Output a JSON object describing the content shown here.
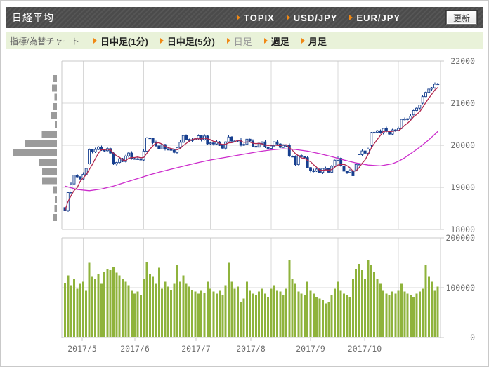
{
  "header": {
    "title": "日経平均",
    "links": [
      {
        "label": "TOPIX"
      },
      {
        "label": "USD/JPY"
      },
      {
        "label": "EUR/JPY"
      }
    ],
    "update_button": "更新"
  },
  "toolbar": {
    "label": "指標/為替チャート",
    "tabs": [
      {
        "label": "日中足(1分)",
        "state": "link"
      },
      {
        "label": "日中足(5分)",
        "state": "link"
      },
      {
        "label": "日足",
        "state": "current"
      },
      {
        "label": "週足",
        "state": "link"
      },
      {
        "label": "月足",
        "state": "link"
      }
    ]
  },
  "colors": {
    "header_bg": "#4b4b4b",
    "toolbar_bg": "#e9f2d9",
    "accent_orange": "#f08814",
    "candle": "#173f8f",
    "ma_short": "#b2274e",
    "ma_long": "#cc2ccc",
    "volume": "#8fb33c",
    "histogram": "#9b9b9b",
    "grid": "#d8d8d8",
    "border": "#c8c8c8",
    "axis_text": "#6e6e6e"
  },
  "chart_data": {
    "type": "candlestick",
    "title": "日経平均",
    "period": "日足",
    "y_axis": {
      "min": 18000,
      "max": 22000,
      "ticks": [
        "22000",
        "21000",
        "20000",
        "19000",
        "18000"
      ],
      "tick_values": [
        22000,
        21000,
        20000,
        19000,
        18000
      ]
    },
    "volume_axis": {
      "min": 0,
      "max": 200000,
      "ticks": [
        "200000",
        "100000",
        "0"
      ],
      "tick_values": [
        200000,
        100000,
        0
      ]
    },
    "x_ticks": [
      {
        "label": "2017/5",
        "index": 6
      },
      {
        "label": "2017/6",
        "index": 26
      },
      {
        "label": "2017/7",
        "index": 48
      },
      {
        "label": "2017/8",
        "index": 68
      },
      {
        "label": "2017/9",
        "index": 90
      },
      {
        "label": "2017/10",
        "index": 110
      }
    ],
    "candles_format": [
      "open",
      "high",
      "low",
      "close",
      "volume"
    ],
    "candles": [
      [
        18520,
        18550,
        18430,
        18450,
        110000
      ],
      [
        18450,
        18890,
        18415,
        18875,
        125000
      ],
      [
        18875,
        19125,
        18850,
        19080,
        105000
      ],
      [
        19080,
        19310,
        19065,
        19290,
        118000
      ],
      [
        19290,
        19320,
        19230,
        19250,
        98000
      ],
      [
        19250,
        19265,
        19165,
        19200,
        108000
      ],
      [
        19200,
        19355,
        19175,
        19310,
        112000
      ],
      [
        19310,
        19470,
        19295,
        19450,
        95000
      ],
      [
        19560,
        19925,
        19540,
        19895,
        150000
      ],
      [
        19895,
        19910,
        19810,
        19845,
        122000
      ],
      [
        19845,
        19945,
        19820,
        19900,
        118000
      ],
      [
        19900,
        19980,
        19885,
        19960,
        128000
      ],
      [
        19960,
        19990,
        19865,
        19885,
        108000
      ],
      [
        19885,
        19900,
        19835,
        19870,
        132000
      ],
      [
        19870,
        19965,
        19845,
        19920,
        138000
      ],
      [
        19920,
        19940,
        19800,
        19815,
        135000
      ],
      [
        19815,
        19845,
        19535,
        19555,
        142000
      ],
      [
        19555,
        19605,
        19520,
        19590,
        130000
      ],
      [
        19590,
        19725,
        19565,
        19680,
        125000
      ],
      [
        19680,
        19700,
        19600,
        19615,
        118000
      ],
      [
        19615,
        19775,
        19595,
        19745,
        112000
      ],
      [
        19745,
        19830,
        19710,
        19815,
        105000
      ],
      [
        19815,
        19860,
        19660,
        19685,
        95000
      ],
      [
        19685,
        19705,
        19665,
        19680,
        88000
      ],
      [
        19680,
        19710,
        19660,
        19680,
        92000
      ],
      [
        19680,
        19695,
        19615,
        19650,
        85000
      ],
      [
        19650,
        19905,
        19625,
        19860,
        118000
      ],
      [
        19860,
        20195,
        19845,
        20175,
        152000
      ],
      [
        20175,
        20200,
        20150,
        20170,
        128000
      ],
      [
        20170,
        20185,
        20025,
        20060,
        122000
      ],
      [
        20060,
        20105,
        19960,
        19985,
        108000
      ],
      [
        19985,
        20005,
        19895,
        19910,
        140000
      ],
      [
        19910,
        20045,
        19890,
        20015,
        98000
      ],
      [
        20015,
        20030,
        19875,
        19910,
        112000
      ],
      [
        19910,
        19955,
        19875,
        19900,
        102000
      ],
      [
        19900,
        19920,
        19870,
        19885,
        96000
      ],
      [
        19885,
        19915,
        19810,
        19830,
        108000
      ],
      [
        19830,
        19960,
        19795,
        19945,
        145000
      ],
      [
        19945,
        20115,
        19920,
        20070,
        112000
      ],
      [
        20070,
        20250,
        20055,
        20230,
        125000
      ],
      [
        20230,
        20260,
        20120,
        20140,
        108000
      ],
      [
        20140,
        20155,
        20075,
        20110,
        102000
      ],
      [
        20110,
        20175,
        20085,
        20130,
        96000
      ],
      [
        20130,
        20175,
        20115,
        20155,
        92000
      ],
      [
        20155,
        20255,
        20135,
        20225,
        88000
      ],
      [
        20225,
        20240,
        20095,
        20130,
        95000
      ],
      [
        20130,
        20265,
        20105,
        20220,
        90000
      ],
      [
        20220,
        20240,
        20020,
        20035,
        112000
      ],
      [
        20035,
        20085,
        20015,
        20055,
        98000
      ],
      [
        20055,
        20070,
        19995,
        20030,
        92000
      ],
      [
        20030,
        20125,
        20005,
        20080,
        88000
      ],
      [
        20080,
        20100,
        19980,
        19995,
        95000
      ],
      [
        19995,
        20025,
        19910,
        19930,
        85000
      ],
      [
        19930,
        20095,
        19895,
        20080,
        105000
      ],
      [
        20080,
        20240,
        20055,
        20195,
        150000
      ],
      [
        20195,
        20215,
        20085,
        20100,
        112000
      ],
      [
        20100,
        20130,
        20080,
        20100,
        98000
      ],
      [
        20100,
        20135,
        20065,
        20120,
        102000
      ],
      [
        20120,
        20165,
        19975,
        20000,
        72000
      ],
      [
        20000,
        20040,
        19985,
        20020,
        78000
      ],
      [
        20020,
        20175,
        20000,
        20145,
        112000
      ],
      [
        20145,
        20160,
        20065,
        20100,
        95000
      ],
      [
        20100,
        20145,
        19950,
        19975,
        88000
      ],
      [
        19975,
        19995,
        19940,
        19955,
        85000
      ],
      [
        19955,
        20080,
        19935,
        20050,
        92000
      ],
      [
        20050,
        20095,
        20015,
        20080,
        98000
      ],
      [
        20080,
        20125,
        19935,
        19960,
        88000
      ],
      [
        19960,
        19980,
        19910,
        19925,
        82000
      ],
      [
        19925,
        20015,
        19905,
        19985,
        98000
      ],
      [
        19985,
        20095,
        19950,
        20080,
        105000
      ],
      [
        20080,
        20125,
        20005,
        20030,
        95000
      ],
      [
        20030,
        20050,
        19935,
        19950,
        92000
      ],
      [
        19950,
        20025,
        19930,
        19995,
        85000
      ],
      [
        19995,
        20015,
        19960,
        20000,
        98000
      ],
      [
        20000,
        20045,
        19715,
        19740,
        155000
      ],
      [
        19740,
        19760,
        19715,
        19730,
        118000
      ],
      [
        19730,
        19760,
        19520,
        19540,
        108000
      ],
      [
        19540,
        19770,
        19505,
        19755,
        92000
      ],
      [
        19755,
        19800,
        19705,
        19730,
        88000
      ],
      [
        19730,
        19750,
        19690,
        19705,
        85000
      ],
      [
        19705,
        19735,
        19450,
        19470,
        112000
      ],
      [
        19470,
        19485,
        19360,
        19395,
        95000
      ],
      [
        19395,
        19440,
        19360,
        19385,
        88000
      ],
      [
        19385,
        19455,
        19370,
        19435,
        82000
      ],
      [
        19435,
        19465,
        19335,
        19355,
        78000
      ],
      [
        19355,
        19465,
        19320,
        19450,
        75000
      ],
      [
        19450,
        19495,
        19425,
        19450,
        68000
      ],
      [
        19450,
        19470,
        19345,
        19360,
        72000
      ],
      [
        19360,
        19535,
        19340,
        19505,
        85000
      ],
      [
        19505,
        19660,
        19470,
        19645,
        98000
      ],
      [
        19645,
        19735,
        19620,
        19690,
        112000
      ],
      [
        19690,
        19710,
        19495,
        19510,
        95000
      ],
      [
        19510,
        19540,
        19365,
        19385,
        88000
      ],
      [
        19385,
        19400,
        19320,
        19355,
        85000
      ],
      [
        19355,
        19440,
        19330,
        19395,
        82000
      ],
      [
        19395,
        19415,
        19260,
        19275,
        118000
      ],
      [
        19390,
        19575,
        19370,
        19545,
        138000
      ],
      [
        19545,
        19790,
        19510,
        19775,
        148000
      ],
      [
        19775,
        19910,
        19750,
        19865,
        135000
      ],
      [
        19865,
        19885,
        19795,
        19810,
        118000
      ],
      [
        19810,
        19940,
        19790,
        19910,
        155000
      ],
      [
        20000,
        20315,
        19965,
        20300,
        145000
      ],
      [
        20300,
        20355,
        20285,
        20310,
        132000
      ],
      [
        20310,
        20365,
        20295,
        20345,
        118000
      ],
      [
        20345,
        20375,
        20275,
        20295,
        108000
      ],
      [
        20295,
        20415,
        20260,
        20400,
        95000
      ],
      [
        20400,
        20445,
        20305,
        20330,
        88000
      ],
      [
        20330,
        20350,
        20250,
        20265,
        85000
      ],
      [
        20265,
        20395,
        20245,
        20365,
        92000
      ],
      [
        20365,
        20380,
        20320,
        20355,
        88000
      ],
      [
        20355,
        20445,
        20330,
        20400,
        95000
      ],
      [
        20400,
        20635,
        20385,
        20615,
        108000
      ],
      [
        20615,
        20655,
        20595,
        20625,
        92000
      ],
      [
        20625,
        20645,
        20590,
        20630,
        88000
      ],
      [
        20630,
        20735,
        20605,
        20690,
        85000
      ],
      [
        20720,
        20845,
        20705,
        20825,
        82000
      ],
      [
        20825,
        20910,
        20805,
        20880,
        88000
      ],
      [
        20880,
        20970,
        20845,
        20955,
        92000
      ],
      [
        21000,
        21200,
        20975,
        21155,
        98000
      ],
      [
        21155,
        21275,
        21140,
        21255,
        145000
      ],
      [
        21255,
        21365,
        21235,
        21335,
        122000
      ],
      [
        21335,
        21380,
        21300,
        21365,
        112000
      ],
      [
        21365,
        21495,
        21340,
        21450,
        95000
      ],
      [
        21450,
        21480,
        21435,
        21460,
        102000
      ]
    ],
    "ma_short": {
      "window": 5
    },
    "ma_long_points": [
      [
        0,
        19030
      ],
      [
        4,
        18950
      ],
      [
        8,
        18920
      ],
      [
        12,
        18960
      ],
      [
        16,
        19030
      ],
      [
        20,
        19120
      ],
      [
        24,
        19210
      ],
      [
        28,
        19300
      ],
      [
        32,
        19380
      ],
      [
        36,
        19450
      ],
      [
        40,
        19520
      ],
      [
        44,
        19590
      ],
      [
        48,
        19650
      ],
      [
        52,
        19700
      ],
      [
        56,
        19750
      ],
      [
        60,
        19800
      ],
      [
        64,
        19850
      ],
      [
        68,
        19890
      ],
      [
        72,
        19915
      ],
      [
        76,
        19900
      ],
      [
        80,
        19860
      ],
      [
        84,
        19800
      ],
      [
        88,
        19730
      ],
      [
        92,
        19650
      ],
      [
        96,
        19580
      ],
      [
        100,
        19530
      ],
      [
        104,
        19510
      ],
      [
        108,
        19560
      ],
      [
        110,
        19620
      ],
      [
        112,
        19700
      ],
      [
        114,
        19800
      ],
      [
        116,
        19900
      ],
      [
        118,
        20010
      ],
      [
        120,
        20130
      ],
      [
        122,
        20260
      ],
      [
        123,
        20330
      ]
    ],
    "price_histogram": {
      "top_center_price": 21580,
      "bin_step": 220,
      "values_pct": [
        10,
        11,
        6,
        10,
        13,
        5,
        35,
        73,
        100,
        42,
        34,
        34,
        10,
        5,
        6,
        8
      ]
    }
  }
}
